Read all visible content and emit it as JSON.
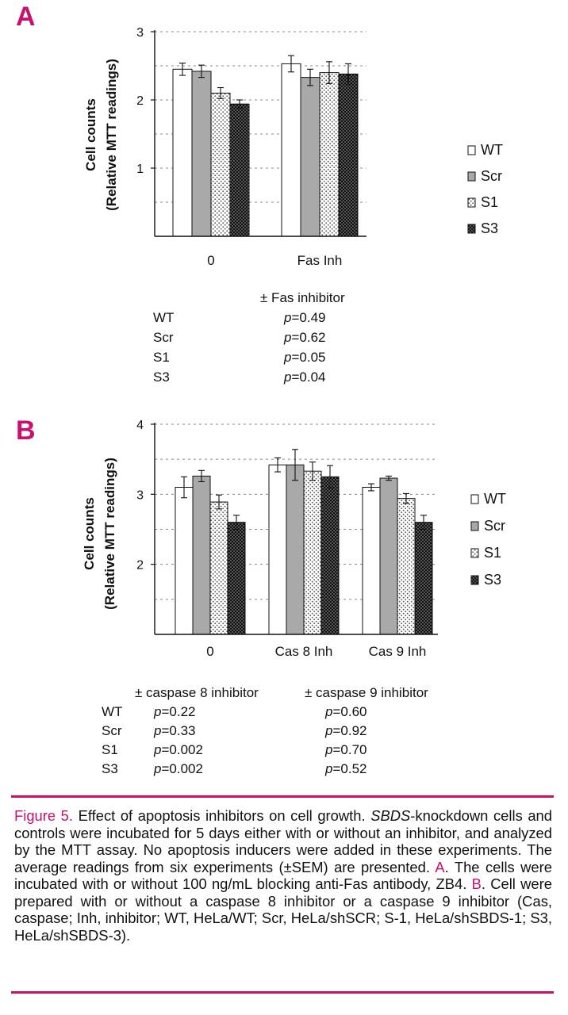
{
  "figure": {
    "panel_a_letter": "A",
    "panel_b_letter": "B",
    "caption_title": "Figure 5.",
    "caption_intro": " Effect of apoptosis inhibitors on cell growth. ",
    "caption_gene": "SBDS",
    "caption_body1": "-knockdown cells and controls were incubated for 5 days either with or without an inhibitor, and analyzed by the MTT assay. No apoptosis inducers were added in these experiments. The average readings from six experiments (±SEM) are presented. ",
    "caption_a": "A",
    "caption_body2": ". The cells were incubated with or without 100 ng/mL blocking anti-Fas antibody, ZB4. ",
    "caption_b": "B",
    "caption_body3": ". Cell were prepared with or without a caspase 8 inhibitor or a caspase 9 inhibitor (Cas, caspase; Inh, inhibitor; WT, HeLa/WT; Scr, HeLa/shSCR; S-1, HeLa/shSBDS-1; S3, HeLa/shSBDS-3)."
  },
  "chart_data": [
    {
      "type": "bar",
      "panel": "A",
      "ylabel_line1": "Cell counts",
      "ylabel_line2": "(Relative MTT readings)",
      "ylim": [
        0,
        3
      ],
      "yticks": [
        "1",
        "2",
        "3"
      ],
      "grid": "dashed horizontal",
      "categories": [
        "0",
        "Fas Inh"
      ],
      "series": [
        {
          "name": "WT",
          "values": [
            2.45,
            2.53
          ],
          "errors": [
            0.09,
            0.12
          ]
        },
        {
          "name": "Scr",
          "values": [
            2.42,
            2.33
          ],
          "errors": [
            0.09,
            0.12
          ]
        },
        {
          "name": "S1",
          "values": [
            2.1,
            2.4
          ],
          "errors": [
            0.08,
            0.16
          ]
        },
        {
          "name": "S3",
          "values": [
            1.94,
            2.38
          ],
          "errors": [
            0.06,
            0.15
          ]
        }
      ],
      "legend": [
        "WT",
        "Scr",
        "S1",
        "S3"
      ],
      "pvalue_table": {
        "header": "± Fas inhibitor",
        "rows": [
          {
            "label": "WT",
            "p": "=0.49"
          },
          {
            "label": "Scr",
            "p": "=0.62"
          },
          {
            "label": "S1",
            "p": "=0.05"
          },
          {
            "label": "S3",
            "p": "=0.04"
          }
        ]
      }
    },
    {
      "type": "bar",
      "panel": "B",
      "ylabel_line1": "Cell counts",
      "ylabel_line2": "(Relative MTT readings)",
      "ylim": [
        1,
        4
      ],
      "yticks": [
        "2",
        "3",
        "4"
      ],
      "grid": "dashed horizontal",
      "categories": [
        "0",
        "Cas 8 Inh",
        "Cas 9 Inh"
      ],
      "series": [
        {
          "name": "WT",
          "values": [
            3.1,
            3.42,
            3.1
          ],
          "errors": [
            0.15,
            0.1,
            0.05
          ]
        },
        {
          "name": "Scr",
          "values": [
            3.26,
            3.42,
            3.23
          ],
          "errors": [
            0.08,
            0.22,
            0.03
          ]
        },
        {
          "name": "S1",
          "values": [
            2.89,
            3.33,
            2.94
          ],
          "errors": [
            0.1,
            0.13,
            0.07
          ]
        },
        {
          "name": "S3",
          "values": [
            2.6,
            3.25,
            2.6
          ],
          "errors": [
            0.1,
            0.16,
            0.1
          ]
        }
      ],
      "legend": [
        "WT",
        "Scr",
        "S1",
        "S3"
      ],
      "pvalue_table": {
        "header_left": "± caspase 8 inhibitor",
        "header_right": "± caspase 9 inhibitor",
        "rows": [
          {
            "label": "WT",
            "p8": "=0.22",
            "p9": "=0.60"
          },
          {
            "label": "Scr",
            "p8": "=0.33",
            "p9": "=0.92"
          },
          {
            "label": "S1",
            "p8": "=0.002",
            "p9": "=0.70"
          },
          {
            "label": "S3",
            "p8": "=0.002",
            "p9": "=0.52"
          }
        ]
      }
    }
  ],
  "styles": {
    "accent": "#c8106e",
    "wt_fill": "#ffffff",
    "scr_fill": "#a9a9a9",
    "s1_fill": "dotted-light",
    "s3_fill": "dotted-dark"
  }
}
